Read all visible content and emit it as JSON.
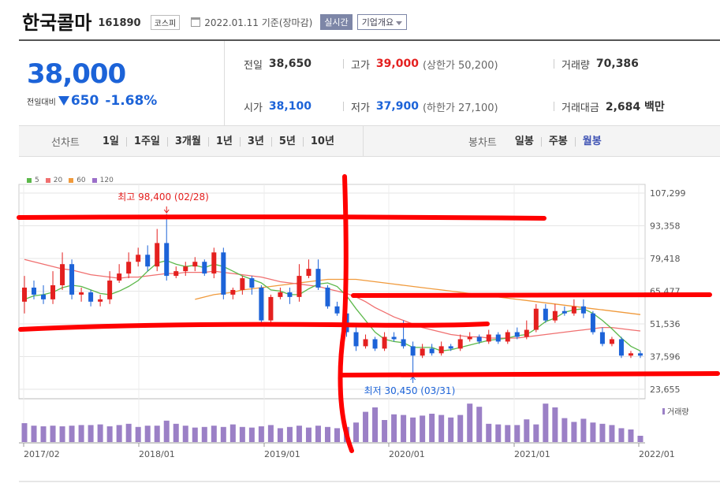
{
  "header": {
    "stock_name": "한국콜마",
    "stock_code": "161890",
    "market": "코스피",
    "date": "2022.01.11 기준(장마감)",
    "realtime": "실시간",
    "company_info": "기업개요",
    "calendar_icon": "calendar-icon"
  },
  "quote": {
    "price": "38,000",
    "diff_label": "전일대비",
    "diff_value": "650",
    "diff_rate": "-1.68%",
    "prev_close_label": "전일",
    "prev_close": "38,650",
    "high_label": "고가",
    "high": "39,000",
    "upper_limit": "(상한가 50,200)",
    "volume_label": "거래량",
    "volume": "70,386",
    "open_label": "시가",
    "open": "38,100",
    "low_label": "저가",
    "low": "37,900",
    "lower_limit": "(하한가 27,100)",
    "amount_label": "거래대금",
    "amount": "2,684 백만"
  },
  "period_bar": {
    "line_label": "선차트",
    "line_items": [
      "1일",
      "1주일",
      "3개월",
      "1년",
      "3년",
      "5년",
      "10년"
    ],
    "candle_label": "봉차트",
    "candle_items": [
      "일봉",
      "주봉",
      "월봉"
    ],
    "active_candle": "월봉"
  },
  "colors": {
    "up": "#e4201f",
    "down": "#1c63d8",
    "ma5": "#5cb84a",
    "ma20": "#f07070",
    "ma60": "#f09a3c",
    "ma120": "#9b6fc9",
    "volume": "#9b80c6",
    "annotation": "#ff0000"
  },
  "chart_data": {
    "type": "candlestick",
    "interval": "monthly",
    "legend": [
      {
        "name": "5",
        "color": "#5cb84a"
      },
      {
        "name": "20",
        "color": "#f07070"
      },
      {
        "name": "60",
        "color": "#f09a3c"
      },
      {
        "name": "120",
        "color": "#9b6fc9"
      }
    ],
    "y_ticks": [
      {
        "value": 107299,
        "label": "107,299"
      },
      {
        "value": 93358,
        "label": "93,358"
      },
      {
        "value": 79418,
        "label": "79,418"
      },
      {
        "value": 65477,
        "label": "65,477"
      },
      {
        "value": 51536,
        "label": "51,536"
      },
      {
        "value": 37596,
        "label": "37,596"
      },
      {
        "value": 23655,
        "label": "23,655"
      }
    ],
    "x_ticks": [
      "2017/02",
      "2018/01",
      "2019/01",
      "2020/01",
      "2021/01",
      "2022/01"
    ],
    "volume_label": "거래량",
    "high_note": "최고 98,400 (02/28)",
    "low_note": "최저 30,450 (03/31)",
    "candles": [
      {
        "o": 61000,
        "c": 67000,
        "h": 72000,
        "l": 56000
      },
      {
        "o": 67000,
        "c": 64000,
        "h": 70000,
        "l": 62000
      },
      {
        "o": 64000,
        "c": 62000,
        "h": 68000,
        "l": 60000
      },
      {
        "o": 62000,
        "c": 68000,
        "h": 74000,
        "l": 60000
      },
      {
        "o": 68000,
        "c": 77000,
        "h": 82000,
        "l": 66000
      },
      {
        "o": 77000,
        "c": 64000,
        "h": 79000,
        "l": 62000
      },
      {
        "o": 64000,
        "c": 65000,
        "h": 67000,
        "l": 61000
      },
      {
        "o": 65000,
        "c": 61000,
        "h": 66000,
        "l": 59000
      },
      {
        "o": 61000,
        "c": 62000,
        "h": 64000,
        "l": 59000
      },
      {
        "o": 62000,
        "c": 70000,
        "h": 74000,
        "l": 60000
      },
      {
        "o": 70000,
        "c": 73000,
        "h": 77000,
        "l": 69000
      },
      {
        "o": 73000,
        "c": 78000,
        "h": 82000,
        "l": 71000
      },
      {
        "o": 78000,
        "c": 81000,
        "h": 84000,
        "l": 76000
      },
      {
        "o": 81000,
        "c": 76000,
        "h": 85000,
        "l": 74000
      },
      {
        "o": 76000,
        "c": 86000,
        "h": 92000,
        "l": 74000
      },
      {
        "o": 86000,
        "c": 72000,
        "h": 98400,
        "l": 70000
      },
      {
        "o": 72000,
        "c": 74000,
        "h": 76000,
        "l": 71000
      },
      {
        "o": 74000,
        "c": 76000,
        "h": 78000,
        "l": 72000
      },
      {
        "o": 76000,
        "c": 78000,
        "h": 80000,
        "l": 74000
      },
      {
        "o": 78000,
        "c": 73000,
        "h": 79000,
        "l": 72000
      },
      {
        "o": 73000,
        "c": 82000,
        "h": 84000,
        "l": 71000
      },
      {
        "o": 82000,
        "c": 64000,
        "h": 84000,
        "l": 62000
      },
      {
        "o": 64000,
        "c": 66000,
        "h": 67000,
        "l": 62000
      },
      {
        "o": 66000,
        "c": 71000,
        "h": 72000,
        "l": 64000
      },
      {
        "o": 71000,
        "c": 67000,
        "h": 72000,
        "l": 64000
      },
      {
        "o": 67000,
        "c": 53000,
        "h": 68000,
        "l": 51000
      },
      {
        "o": 53000,
        "c": 63000,
        "h": 64000,
        "l": 52000
      },
      {
        "o": 63000,
        "c": 65000,
        "h": 67000,
        "l": 62000
      },
      {
        "o": 65000,
        "c": 63000,
        "h": 67000,
        "l": 60000
      },
      {
        "o": 63000,
        "c": 72000,
        "h": 77000,
        "l": 61000
      },
      {
        "o": 72000,
        "c": 75000,
        "h": 79000,
        "l": 71000
      },
      {
        "o": 75000,
        "c": 67000,
        "h": 79000,
        "l": 66000
      },
      {
        "o": 67000,
        "c": 59000,
        "h": 68000,
        "l": 58000
      },
      {
        "o": 59000,
        "c": 56000,
        "h": 61000,
        "l": 55000
      },
      {
        "o": 56000,
        "c": 48000,
        "h": 58000,
        "l": 46000
      },
      {
        "o": 48000,
        "c": 42000,
        "h": 50000,
        "l": 40000
      },
      {
        "o": 42000,
        "c": 45000,
        "h": 47000,
        "l": 41000
      },
      {
        "o": 45000,
        "c": 41000,
        "h": 46000,
        "l": 40000
      },
      {
        "o": 41000,
        "c": 46000,
        "h": 48000,
        "l": 40000
      },
      {
        "o": 46000,
        "c": 45000,
        "h": 48000,
        "l": 44000
      },
      {
        "o": 45000,
        "c": 42000,
        "h": 53000,
        "l": 41000
      },
      {
        "o": 42000,
        "c": 38000,
        "h": 44000,
        "l": 30450
      },
      {
        "o": 38000,
        "c": 41000,
        "h": 43000,
        "l": 37000
      },
      {
        "o": 41000,
        "c": 39000,
        "h": 43000,
        "l": 38000
      },
      {
        "o": 39000,
        "c": 42000,
        "h": 44000,
        "l": 38000
      },
      {
        "o": 42000,
        "c": 41000,
        "h": 43000,
        "l": 40000
      },
      {
        "o": 41000,
        "c": 45000,
        "h": 47000,
        "l": 40000
      },
      {
        "o": 45000,
        "c": 46000,
        "h": 48000,
        "l": 44000
      },
      {
        "o": 46000,
        "c": 44000,
        "h": 47000,
        "l": 43000
      },
      {
        "o": 44000,
        "c": 47000,
        "h": 49000,
        "l": 43000
      },
      {
        "o": 47000,
        "c": 44000,
        "h": 48000,
        "l": 43000
      },
      {
        "o": 44000,
        "c": 48000,
        "h": 49000,
        "l": 43000
      },
      {
        "o": 48000,
        "c": 46000,
        "h": 50000,
        "l": 45000
      },
      {
        "o": 46000,
        "c": 49000,
        "h": 53000,
        "l": 45000
      },
      {
        "o": 49000,
        "c": 58000,
        "h": 60000,
        "l": 48000
      },
      {
        "o": 58000,
        "c": 53000,
        "h": 60000,
        "l": 52000
      },
      {
        "o": 53000,
        "c": 57000,
        "h": 60000,
        "l": 52000
      },
      {
        "o": 57000,
        "c": 56000,
        "h": 59000,
        "l": 55000
      },
      {
        "o": 56000,
        "c": 59000,
        "h": 62000,
        "l": 55000
      },
      {
        "o": 59000,
        "c": 56000,
        "h": 62000,
        "l": 54000
      },
      {
        "o": 56000,
        "c": 48000,
        "h": 57000,
        "l": 47000
      },
      {
        "o": 48000,
        "c": 43000,
        "h": 50000,
        "l": 42000
      },
      {
        "o": 43000,
        "c": 45000,
        "h": 46000,
        "l": 42000
      },
      {
        "o": 45000,
        "c": 38000,
        "h": 46000,
        "l": 37000
      },
      {
        "o": 38000,
        "c": 39000,
        "h": 40000,
        "l": 37000
      },
      {
        "o": 39000,
        "c": 38000,
        "h": 40000,
        "l": 37000
      }
    ],
    "ma5": [
      62000,
      63500,
      64000,
      65000,
      67000,
      68000,
      67500,
      66000,
      64500,
      64000,
      65500,
      67500,
      70000,
      74000,
      77500,
      78500,
      77000,
      76000,
      76500,
      75500,
      77000,
      76000,
      74000,
      72000,
      70500,
      69000,
      66000,
      65500,
      64000,
      64000,
      66500,
      68500,
      69000,
      67500,
      63500,
      58000,
      53000,
      48000,
      45000,
      44000,
      43500,
      41500,
      41500,
      41500,
      40000,
      40500,
      41500,
      42500,
      43500,
      44500,
      45000,
      45500,
      46500,
      47000,
      49500,
      52500,
      54000,
      56500,
      57500,
      58000,
      56000,
      53000,
      49500,
      45500,
      42000,
      40000
    ],
    "ma20": [
      79000,
      78000,
      77000,
      76000,
      75000,
      74500,
      73500,
      72500,
      72000,
      71500,
      71000,
      71500,
      71500,
      72000,
      72500,
      73000,
      73000,
      73500,
      73500,
      73500,
      74000,
      73500,
      73000,
      72500,
      72000,
      71500,
      70500,
      69500,
      69000,
      68500,
      68000,
      67500,
      66500,
      65500,
      64500,
      63000,
      61000,
      58500,
      56500,
      54500,
      53000,
      51500,
      50000,
      49000,
      48000,
      47000,
      46500,
      46000,
      46000,
      45500,
      45500,
      45500,
      45500,
      46000,
      46500,
      47000,
      47500,
      48000,
      48500,
      49000,
      49500,
      50000,
      50000,
      49500,
      49000,
      48500
    ],
    "ma60": [
      null,
      null,
      null,
      null,
      null,
      null,
      null,
      null,
      null,
      null,
      null,
      null,
      null,
      null,
      null,
      null,
      null,
      null,
      62000,
      63000,
      64000,
      64500,
      65000,
      66000,
      66500,
      67000,
      67500,
      68000,
      68500,
      69000,
      69500,
      70000,
      70500,
      70500,
      70500,
      70500,
      70000,
      69500,
      69000,
      68500,
      68000,
      67500,
      67000,
      66500,
      66000,
      65500,
      65000,
      64500,
      64000,
      63500,
      63000,
      62500,
      62000,
      61500,
      61000,
      60500,
      60000,
      59500,
      59000,
      58500,
      58000,
      57500,
      57000,
      56500,
      56000,
      55500
    ],
    "volume": [
      30,
      26,
      25,
      26,
      25,
      26,
      27,
      27,
      28,
      25,
      27,
      29,
      24,
      26,
      26,
      34,
      29,
      26,
      23,
      24,
      26,
      24,
      28,
      24,
      23,
      25,
      27,
      22,
      24,
      26,
      23,
      26,
      24,
      22,
      24,
      31,
      48,
      55,
      35,
      44,
      43,
      39,
      42,
      45,
      43,
      39,
      43,
      61,
      56,
      29,
      28,
      27,
      27,
      36,
      28,
      61,
      55,
      38,
      32,
      37,
      31,
      29,
      27,
      22,
      20,
      10
    ]
  }
}
